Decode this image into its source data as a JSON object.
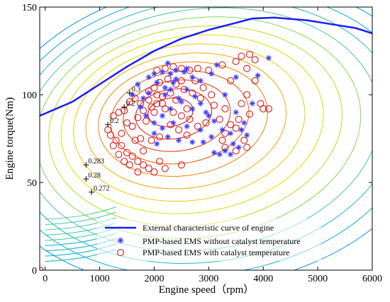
{
  "chart_data": {
    "type": "scatter",
    "xlabel": "Engine speed（rpm）",
    "ylabel": "Engine torque(Nm)",
    "xlim": [
      -100,
      6000
    ],
    "ylim": [
      0,
      150
    ],
    "x_ticks": [
      0,
      1000,
      2000,
      3000,
      4000,
      5000,
      6000
    ],
    "y_ticks": [
      0,
      50,
      100,
      150
    ],
    "x_tick_labels": [
      "0",
      "1000",
      "2000",
      "3000",
      "4000",
      "5000",
      "6000"
    ],
    "y_tick_labels": [
      "0",
      "50",
      "100",
      "150"
    ],
    "grid": false,
    "legend_position": "bottom-center",
    "contour_labels": [
      {
        "x": 750,
        "y": 60,
        "text": "0.283"
      },
      {
        "x": 750,
        "y": 52,
        "text": "0.28"
      },
      {
        "x": 850,
        "y": 44.5,
        "text": "0.272"
      },
      {
        "x": 1150,
        "y": 83,
        "text": "0.2"
      },
      {
        "x": 1450,
        "y": 93,
        "text": "0.2"
      },
      {
        "x": 1550,
        "y": 101,
        "text": "0.3"
      }
    ],
    "series": [
      {
        "name": "External characteristic curve of engine",
        "style": "line",
        "color": "#1a1aff",
        "points": [
          [
            -100,
            88
          ],
          [
            500,
            96
          ],
          [
            1000,
            106
          ],
          [
            1500,
            116
          ],
          [
            2000,
            125
          ],
          [
            2500,
            132
          ],
          [
            3000,
            137
          ],
          [
            3500,
            141
          ],
          [
            3800,
            143.5
          ],
          [
            4200,
            144
          ],
          [
            4800,
            142.5
          ],
          [
            5300,
            140
          ],
          [
            5700,
            138
          ],
          [
            6000,
            135
          ]
        ]
      },
      {
        "name": "PMP-based EMS without catalyst temperature",
        "style": "asterisk",
        "color": "#3a3aff",
        "points": [
          [
            1900,
            110
          ],
          [
            2000,
            112
          ],
          [
            2150,
            113
          ],
          [
            2300,
            112
          ],
          [
            2400,
            114
          ],
          [
            2550,
            113
          ],
          [
            2700,
            110
          ],
          [
            2850,
            108
          ],
          [
            3050,
            112
          ],
          [
            3150,
            117
          ],
          [
            3500,
            110
          ],
          [
            3900,
            111
          ],
          [
            4100,
            121
          ],
          [
            3300,
            100
          ],
          [
            3800,
            95
          ],
          [
            3500,
            90
          ],
          [
            3000,
            88
          ],
          [
            2700,
            92
          ],
          [
            2500,
            96
          ],
          [
            2200,
            100
          ],
          [
            1900,
            101
          ],
          [
            1700,
            106
          ],
          [
            1600,
            100
          ],
          [
            1750,
            93
          ],
          [
            1850,
            88
          ],
          [
            2000,
            84
          ],
          [
            2150,
            88
          ],
          [
            2300,
            92
          ],
          [
            2450,
            98
          ],
          [
            2600,
            103
          ],
          [
            2750,
            99
          ],
          [
            2850,
            95
          ],
          [
            2950,
            90
          ],
          [
            3100,
            85
          ],
          [
            3250,
            80
          ],
          [
            3400,
            78
          ],
          [
            3600,
            80
          ],
          [
            3650,
            84
          ],
          [
            3700,
            77
          ],
          [
            3450,
            72
          ],
          [
            3300,
            68
          ],
          [
            3200,
            66
          ],
          [
            3100,
            67
          ],
          [
            3400,
            66
          ],
          [
            3550,
            70
          ],
          [
            2900,
            73
          ],
          [
            2700,
            73
          ],
          [
            2450,
            74
          ],
          [
            2250,
            76
          ],
          [
            2050,
            72
          ],
          [
            2000,
            78
          ],
          [
            2150,
            81
          ],
          [
            2350,
            84
          ],
          [
            2600,
            82
          ],
          [
            2850,
            80
          ],
          [
            3050,
            76
          ],
          [
            2200,
            104
          ],
          [
            2350,
            107
          ],
          [
            2050,
            107
          ],
          [
            1800,
            98
          ],
          [
            2600,
            115
          ],
          [
            2250,
            118
          ],
          [
            2400,
            109
          ],
          [
            2300,
            103
          ]
        ]
      },
      {
        "name": "PMP-based EMS  with catalyst temperature",
        "style": "circle",
        "color": "#dd1a1a",
        "points": [
          [
            2050,
            114
          ],
          [
            2200,
            115
          ],
          [
            2350,
            116
          ],
          [
            2500,
            115
          ],
          [
            2650,
            114
          ],
          [
            2800,
            115
          ],
          [
            3000,
            114
          ],
          [
            3250,
            117
          ],
          [
            3500,
            119
          ],
          [
            3600,
            122
          ],
          [
            3750,
            123
          ],
          [
            3850,
            120
          ],
          [
            3700,
            115
          ],
          [
            3850,
            108
          ],
          [
            3700,
            100
          ],
          [
            3600,
            95
          ],
          [
            3950,
            95
          ],
          [
            4000,
            92
          ],
          [
            4100,
            92
          ],
          [
            3750,
            89
          ],
          [
            3550,
            86
          ],
          [
            3500,
            81
          ],
          [
            3400,
            83
          ],
          [
            3300,
            78
          ],
          [
            3250,
            74
          ],
          [
            3650,
            74
          ],
          [
            3700,
            70
          ],
          [
            3500,
            68
          ],
          [
            3300,
            70
          ],
          [
            2950,
            84
          ],
          [
            2800,
            82
          ],
          [
            2650,
            86
          ],
          [
            2500,
            88
          ],
          [
            2350,
            90
          ],
          [
            2200,
            92
          ],
          [
            2050,
            95
          ],
          [
            1900,
            97
          ],
          [
            1750,
            95
          ],
          [
            1650,
            98
          ],
          [
            1550,
            96
          ],
          [
            1450,
            91
          ],
          [
            1350,
            90
          ],
          [
            1250,
            88
          ],
          [
            1150,
            80
          ],
          [
            1200,
            77
          ],
          [
            1300,
            74
          ],
          [
            1400,
            71
          ],
          [
            1500,
            67
          ],
          [
            1600,
            65
          ],
          [
            1700,
            62
          ],
          [
            1800,
            60
          ],
          [
            1900,
            58
          ],
          [
            2000,
            56
          ],
          [
            2200,
            58
          ],
          [
            2500,
            60
          ],
          [
            1400,
            78
          ],
          [
            1600,
            82
          ],
          [
            1700,
            87
          ],
          [
            1800,
            91
          ],
          [
            1900,
            102
          ],
          [
            2000,
            104
          ],
          [
            2100,
            107
          ],
          [
            2250,
            109
          ],
          [
            2400,
            106
          ],
          [
            2550,
            103
          ],
          [
            2700,
            101
          ],
          [
            2850,
            98
          ],
          [
            2600,
            92
          ],
          [
            2400,
            97
          ],
          [
            2150,
            99
          ],
          [
            2000,
            90
          ],
          [
            1850,
            85
          ],
          [
            2300,
            83
          ],
          [
            2450,
            80
          ],
          [
            2600,
            77
          ],
          [
            2100,
            76
          ],
          [
            1950,
            74
          ],
          [
            1750,
            75
          ],
          [
            1500,
            84
          ],
          [
            1650,
            74
          ],
          [
            1350,
            66
          ],
          [
            1550,
            60
          ],
          [
            1700,
            56
          ],
          [
            2100,
            62
          ],
          [
            1800,
            68
          ],
          [
            2300,
            101
          ],
          [
            2050,
            100
          ],
          [
            3100,
            94
          ],
          [
            3300,
            92
          ],
          [
            3200,
            86
          ],
          [
            2900,
            104
          ],
          [
            3050,
            100
          ],
          [
            3400,
            108
          ],
          [
            2750,
            108
          ],
          [
            2150,
            95
          ],
          [
            2500,
            108
          ],
          [
            1950,
            93
          ],
          [
            1250,
            71
          ],
          [
            1450,
            62
          ]
        ]
      }
    ]
  },
  "legend": {
    "items": [
      {
        "label": "External characteristic curve of engine",
        "marker": "line"
      },
      {
        "label": "PMP-based EMS without catalyst temperature",
        "marker": "asterisk"
      },
      {
        "label": "PMP-based EMS  with catalyst temperature",
        "marker": "circle"
      }
    ]
  },
  "colors": {
    "axis": "#000000",
    "envelope": "#1a1aff",
    "stars": "#3a3aff",
    "circles": "#dd1a1a",
    "contour_low": "#00b0c8",
    "contour_mid": "#e8e000",
    "contour_high": "#d40000"
  }
}
